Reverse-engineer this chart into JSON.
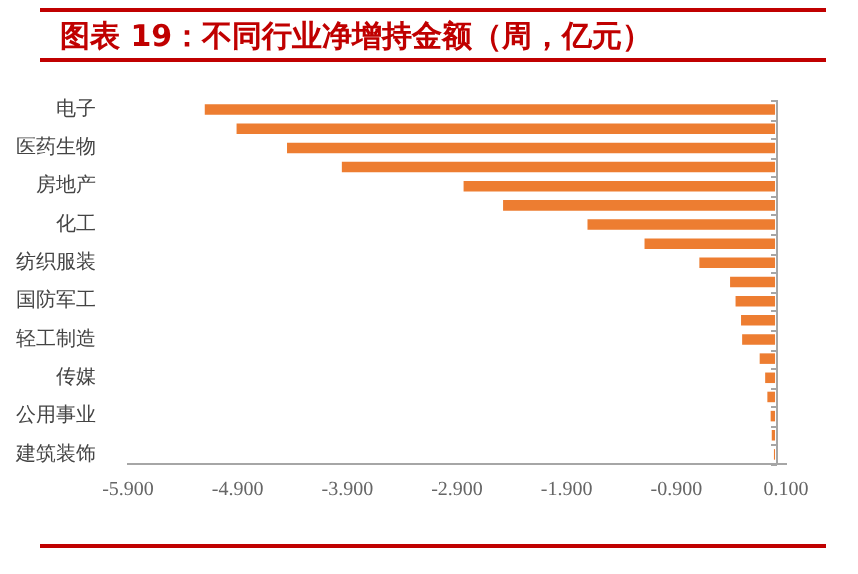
{
  "chart_data": {
    "type": "bar",
    "orientation": "horizontal",
    "title": "图表 19：不同行业净增持金额（周，亿元）",
    "categories": [
      "电子",
      null,
      "医药生物",
      null,
      "房地产",
      null,
      "化工",
      null,
      "纺织服装",
      null,
      "国防军工",
      null,
      "轻工制造",
      null,
      "传媒",
      null,
      "公用事业",
      null,
      "建筑装饰"
    ],
    "values": [
      -5.2,
      -4.91,
      -4.45,
      -3.95,
      -2.84,
      -2.48,
      -1.71,
      -1.19,
      -0.69,
      -0.41,
      -0.36,
      -0.31,
      -0.3,
      -0.14,
      -0.09,
      -0.07,
      -0.04,
      -0.03,
      -0.01
    ],
    "color": "#ed7d31",
    "xlim": [
      -5.9,
      0.1
    ],
    "xticks": [
      {
        "value": -5.9,
        "label": "-5.900"
      },
      {
        "value": -4.9,
        "label": "-4.900"
      },
      {
        "value": -3.9,
        "label": "-3.900"
      },
      {
        "value": -2.9,
        "label": "-2.900"
      },
      {
        "value": -1.9,
        "label": "-1.900"
      },
      {
        "value": -0.9,
        "label": "-0.900"
      },
      {
        "value": 0.1,
        "label": "0.100"
      }
    ],
    "grid": false,
    "legend": false
  }
}
